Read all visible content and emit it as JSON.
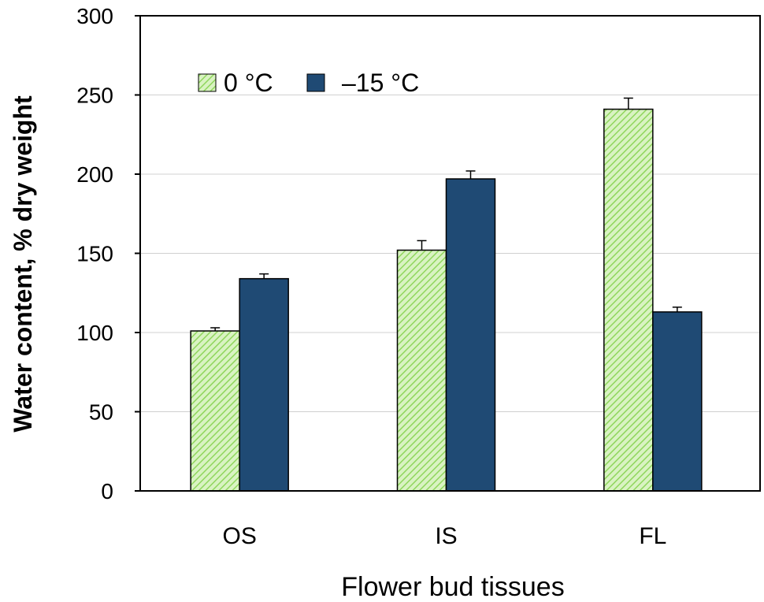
{
  "chart_data": {
    "type": "bar",
    "title": "",
    "xlabel": "Flower bud tissues",
    "ylabel": "Water content,  % dry weight",
    "categories": [
      "OS",
      "IS",
      "FL"
    ],
    "ylim": [
      0,
      300
    ],
    "yticks": [
      0,
      50,
      100,
      150,
      200,
      250,
      300
    ],
    "grid": true,
    "legend_position": "top-left",
    "series": [
      {
        "name": "0 °C",
        "values": [
          101,
          152,
          241
        ],
        "errors": [
          2,
          6,
          7
        ],
        "color": "#a6e07a",
        "pattern": "hatched"
      },
      {
        "name": "–15 °C",
        "values": [
          134,
          197,
          113
        ],
        "errors": [
          3,
          5,
          3
        ],
        "color": "#1f4a74",
        "pattern": "solid"
      }
    ]
  }
}
